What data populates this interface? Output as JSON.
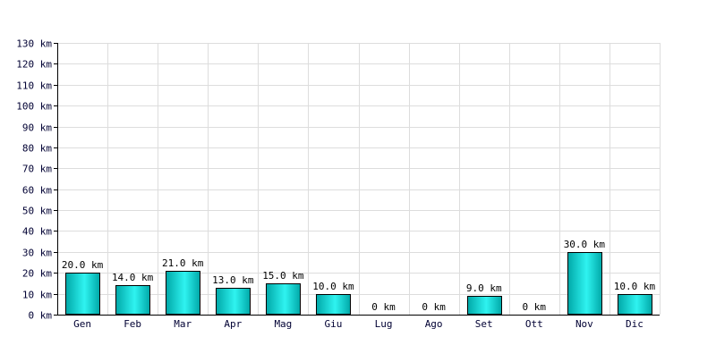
{
  "chart_data": {
    "type": "bar",
    "categories": [
      "Gen",
      "Feb",
      "Mar",
      "Apr",
      "Mag",
      "Giu",
      "Lug",
      "Ago",
      "Set",
      "Ott",
      "Nov",
      "Dic"
    ],
    "values": [
      20,
      14,
      21,
      13,
      15,
      10,
      0,
      0,
      9,
      0,
      30,
      10
    ],
    "value_labels": [
      "20.0 km",
      "14.0 km",
      "21.0 km",
      "13.0 km",
      "15.0 km",
      "10.0 km",
      "0 km",
      "0 km",
      "9.0 km",
      "0 km",
      "30.0 km",
      "10.0 km"
    ],
    "y_ticks": [
      0,
      10,
      20,
      30,
      40,
      50,
      60,
      70,
      80,
      90,
      100,
      110,
      120,
      130
    ],
    "y_tick_labels": [
      "0 km",
      "10 km",
      "20 km",
      "30 km",
      "40 km",
      "50 km",
      "60 km",
      "70 km",
      "80 km",
      "90 km",
      "100 km",
      "110 km",
      "120 km",
      "130 km"
    ],
    "ylim": [
      0,
      130
    ],
    "grid": true,
    "colors": {
      "bar_light": "#2ff3f0",
      "bar_dark": "#00a8a8",
      "bar_stroke": "#000000",
      "grid": "#dddddd",
      "axis": "#000000",
      "tick_text": "#000033",
      "label_text": "#000000"
    }
  }
}
